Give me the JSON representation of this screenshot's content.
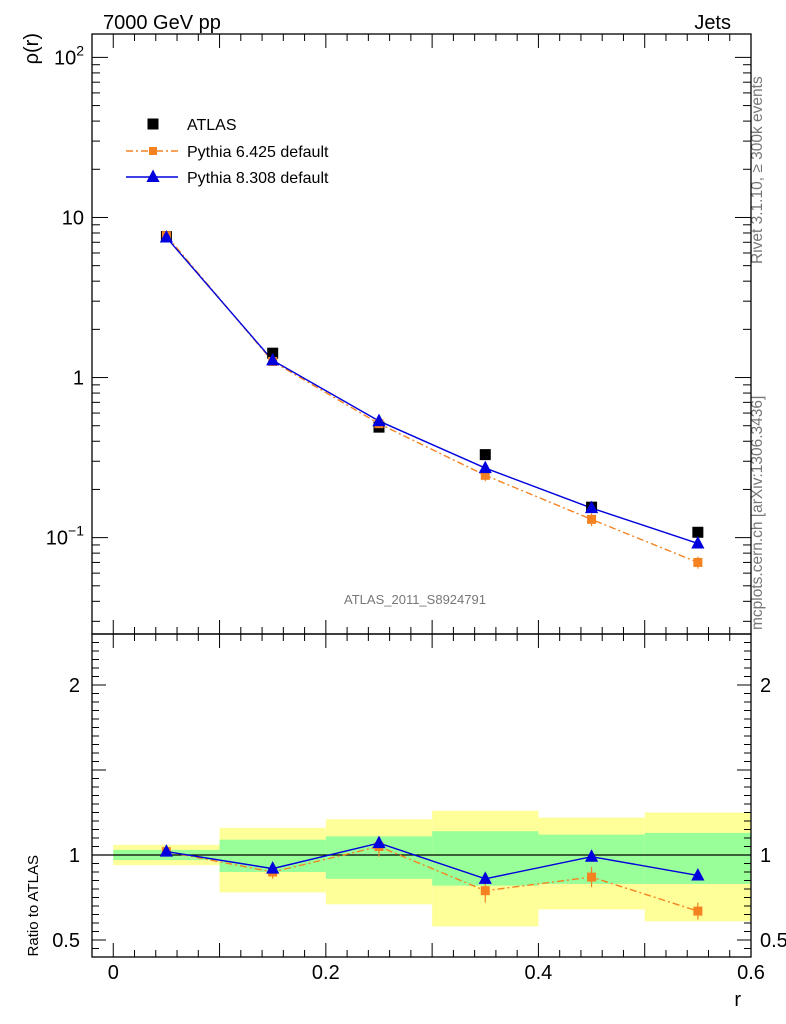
{
  "header": {
    "energy_label": "7000 GeV pp",
    "process_label": "Jets"
  },
  "side_labels": {
    "rivet": "Rivet 3.1.10, ≥ 300k events",
    "source": "mcplots.cern.ch [arXiv:1306.3436]"
  },
  "analysis_id": "ATLAS_2011_S8924791",
  "chart_data": [
    {
      "type": "scatter",
      "panel": "main",
      "ylabel": "ρ(r)",
      "yscale": "log",
      "ylim": [
        0.025,
        140
      ],
      "xlim": [
        -0.02,
        0.6
      ],
      "y_ticks": [
        {
          "value": 0.1,
          "base": "10",
          "exp": "−1"
        },
        {
          "value": 1,
          "label": "1"
        },
        {
          "value": 10,
          "label": "10"
        },
        {
          "value": 100,
          "base": "10",
          "exp": "2"
        }
      ],
      "legend_position": "top-left",
      "x": [
        0.05,
        0.15,
        0.25,
        0.35,
        0.45,
        0.55
      ],
      "series": [
        {
          "name": "ATLAS",
          "values": [
            7.6,
            1.42,
            0.49,
            0.33,
            0.155,
            0.108
          ],
          "color": "#000000",
          "marker": "square"
        },
        {
          "name": "Pythia 6.425 default",
          "values": [
            7.7,
            1.26,
            0.515,
            0.245,
            0.13,
            0.07
          ],
          "errors": [
            0.15,
            0.04,
            0.02,
            0.02,
            0.012,
            0.006
          ],
          "color": "#f58220",
          "marker": "square",
          "line": "dash-dot"
        },
        {
          "name": "Pythia 8.308 default",
          "values": [
            7.5,
            1.28,
            0.535,
            0.272,
            0.153,
            0.092
          ],
          "color": "#0000dd",
          "marker": "triangle",
          "line": "solid"
        }
      ]
    },
    {
      "type": "line",
      "panel": "ratio",
      "xlabel": "r",
      "ylabel": "Ratio to ATLAS",
      "xlim": [
        -0.02,
        0.6
      ],
      "ylim": [
        0.4,
        2.3
      ],
      "x_ticks": [
        {
          "value": 0,
          "label": "0"
        },
        {
          "value": 0.2,
          "label": "0.2"
        },
        {
          "value": 0.4,
          "label": "0.4"
        },
        {
          "value": 0.6,
          "label": "0.6"
        }
      ],
      "y_ticks": [
        {
          "value": 0.5,
          "label": "0.5"
        },
        {
          "value": 1,
          "label": "1"
        },
        {
          "value": 2,
          "label": "2"
        }
      ],
      "bins": [
        [
          0.0,
          0.1
        ],
        [
          0.1,
          0.2
        ],
        [
          0.2,
          0.3
        ],
        [
          0.3,
          0.4
        ],
        [
          0.4,
          0.5
        ],
        [
          0.5,
          0.6
        ]
      ],
      "band_inner": [
        [
          0.97,
          1.03
        ],
        [
          0.9,
          1.09
        ],
        [
          0.86,
          1.11
        ],
        [
          0.82,
          1.14
        ],
        [
          0.83,
          1.12
        ],
        [
          0.83,
          1.13
        ]
      ],
      "band_outer": [
        [
          0.94,
          1.06
        ],
        [
          0.78,
          1.16
        ],
        [
          0.71,
          1.21
        ],
        [
          0.58,
          1.26
        ],
        [
          0.68,
          1.22
        ],
        [
          0.61,
          1.25
        ]
      ],
      "x": [
        0.05,
        0.15,
        0.25,
        0.35,
        0.45,
        0.55
      ],
      "series": [
        {
          "name": "Pythia 6.425 default",
          "values": [
            1.02,
            0.9,
            1.05,
            0.79,
            0.87,
            0.67
          ],
          "errors": [
            0.02,
            0.04,
            0.06,
            0.07,
            0.06,
            0.05
          ],
          "color": "#f58220"
        },
        {
          "name": "Pythia 8.308 default",
          "values": [
            1.02,
            0.92,
            1.07,
            0.86,
            0.99,
            0.88
          ],
          "errors": [
            0.01,
            0.01,
            0.02,
            0.02,
            0.02,
            0.01
          ],
          "color": "#0000dd"
        }
      ],
      "band_colors": {
        "inner": "#99ff99",
        "outer": "#ffff99"
      }
    }
  ]
}
